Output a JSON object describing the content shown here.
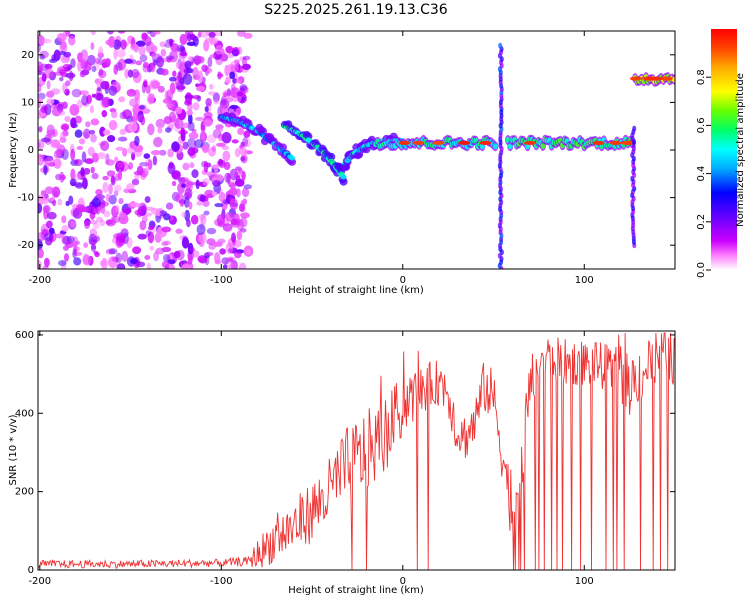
{
  "title": "S225.2025.261.19.13.C36",
  "chart_data": [
    {
      "type": "heatmap",
      "title": "S225.2025.261.19.13.C36",
      "xlabel": "Height of straight line (km)",
      "ylabel": "Frequency (Hz)",
      "xlim": [
        -201,
        150
      ],
      "ylim": [
        -25,
        25
      ],
      "xticks": [
        -200,
        -100,
        0,
        100
      ],
      "yticks": [
        -20,
        -10,
        0,
        10,
        20
      ],
      "colorbar": {
        "label": "Normalized spectral amplitude",
        "range": [
          0,
          1
        ],
        "ticks": [
          0.0,
          0.2,
          0.4,
          0.6,
          0.8
        ],
        "tick_labels": [
          "0.0",
          "0.2",
          "0.4",
          "0.6",
          "0.8"
        ],
        "colors": [
          "#ffffff",
          "#ff00ff",
          "#6600ff",
          "#0000ff",
          "#00ffff",
          "#00ff00",
          "#ffff00",
          "#ff8800",
          "#ff0000"
        ]
      },
      "features": [
        {
          "name": "noise-region",
          "x_range": [
            -201,
            -85
          ],
          "freq_range": [
            -25,
            25
          ],
          "level": 0.25
        },
        {
          "name": "descending-streak-1",
          "x": [
            -100,
            -90,
            -80,
            -70,
            -60
          ],
          "freq": [
            7,
            6,
            4,
            1,
            -2
          ],
          "level": 0.35
        },
        {
          "name": "descending-streak-2",
          "x": [
            -65,
            -55,
            -45,
            -38,
            -32
          ],
          "freq": [
            5,
            3,
            0,
            -3,
            -6
          ],
          "level": 0.45
        },
        {
          "name": "dip-to-flat",
          "x": [
            -32,
            -28,
            -20,
            -10,
            0
          ],
          "freq": [
            -3,
            -1,
            1,
            2,
            2
          ],
          "level": 0.4
        },
        {
          "name": "flat-band-1",
          "x_range": [
            -15,
            52
          ],
          "freq": 1.5,
          "level": 0.65
        },
        {
          "name": "vertical-spike-1",
          "x": 54,
          "freq_range": [
            -25,
            22
          ],
          "level": 0.3
        },
        {
          "name": "flat-band-2",
          "x_range": [
            58,
            127
          ],
          "freq": 1.5,
          "level": 0.7
        },
        {
          "name": "vertical-spike-2",
          "x": 127,
          "freq_range": [
            -20,
            5
          ],
          "level": 0.25
        },
        {
          "name": "high-band",
          "x_range": [
            128,
            150
          ],
          "freq": 15,
          "level": 0.9
        }
      ]
    },
    {
      "type": "line",
      "xlabel": "Height of straight line (km)",
      "ylabel": "SNR (10 * v/v)",
      "xlim": [
        -201,
        150
      ],
      "ylim": [
        0,
        610
      ],
      "xticks": [
        -200,
        -100,
        0,
        100
      ],
      "yticks": [
        0,
        200,
        400,
        600
      ],
      "color": "#ee3333",
      "series": [
        {
          "name": "SNR",
          "x": [
            -200,
            -150,
            -100,
            -85,
            -80,
            -75,
            -70,
            -60,
            -50,
            -40,
            -35,
            -30,
            -25,
            -20,
            -15,
            -10,
            -5,
            0,
            5,
            10,
            15,
            20,
            25,
            30,
            35,
            40,
            45,
            50,
            55,
            60,
            63,
            66,
            70,
            75,
            80,
            90,
            100,
            110,
            120,
            125,
            130,
            135,
            140,
            145,
            150
          ],
          "values": [
            15,
            15,
            18,
            22,
            40,
            60,
            80,
            110,
            150,
            200,
            240,
            260,
            280,
            300,
            320,
            340,
            380,
            420,
            440,
            460,
            470,
            480,
            460,
            350,
            340,
            380,
            470,
            440,
            300,
            150,
            120,
            300,
            460,
            530,
            540,
            530,
            530,
            520,
            500,
            470,
            500,
            520,
            540,
            550,
            540
          ],
          "noise_amplitude": [
            10,
            10,
            10,
            12,
            40,
            50,
            60,
            70,
            80,
            90,
            100,
            110,
            110,
            110,
            100,
            100,
            90,
            80,
            70,
            60,
            60,
            60,
            70,
            60,
            60,
            70,
            70,
            70,
            80,
            80,
            90,
            100,
            80,
            60,
            60,
            60,
            60,
            60,
            70,
            80,
            80,
            80,
            80,
            80,
            70
          ],
          "dropouts": [
            -28,
            -20,
            8,
            14,
            61,
            62,
            64,
            65,
            67,
            73,
            75,
            78,
            82,
            85,
            88,
            93,
            98,
            104,
            112,
            116,
            118,
            122,
            131,
            138,
            142,
            146
          ]
        }
      ]
    }
  ]
}
